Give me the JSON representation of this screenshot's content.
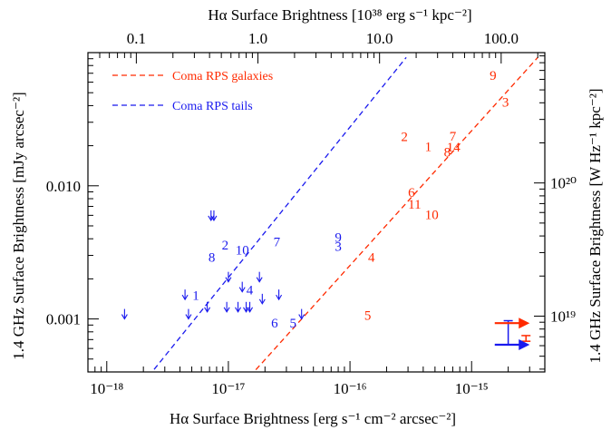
{
  "chart_data": {
    "type": "scatter",
    "xlabel": "Hα Surface Brightness [erg s⁻¹ cm⁻² arcsec⁻²]",
    "ylabel": "1.4 GHz Surface Brightness [mJy arcsec⁻²]",
    "top_xlabel": "Hα Surface Brightness [10³⁸ erg s⁻¹ kpc⁻²]",
    "right_ylabel": "1.4 GHz Surface Brightness [W Hz⁻¹ kpc⁻²]",
    "x_scale": "log",
    "y_scale": "log",
    "xlim": [
      7e-19,
      4e-15
    ],
    "ylim": [
      0.0004,
      0.1
    ],
    "x_ticks": [
      1e-18,
      1e-17,
      1e-16,
      1e-15
    ],
    "x_tick_labels": [
      "10⁻¹⁸",
      "10⁻¹⁷",
      "10⁻¹⁶",
      "10⁻¹⁵"
    ],
    "y_ticks": [
      0.001,
      0.01
    ],
    "y_tick_labels": [
      "0.001",
      "0.010"
    ],
    "top_ticks": [
      0.1,
      1.0,
      10.0,
      100.0
    ],
    "top_tick_labels": [
      "0.1",
      "1.0",
      "10.0",
      "100.0"
    ],
    "top_axis_factor": 1.75e-17,
    "right_ticks": [
      1e+19,
      1e+20
    ],
    "right_tick_labels": [
      "10¹⁹",
      "10²⁰"
    ],
    "right_axis_factor": 1.05e-22,
    "colors": {
      "galaxies": "#ff2a00",
      "tails": "#1a1aee",
      "axes": "#000000"
    },
    "legend": [
      {
        "label": "Coma RPS galaxies",
        "color": "#ff2a00"
      },
      {
        "label": "Coma RPS tails",
        "color": "#1a1aee"
      }
    ],
    "legend_position": "top-left",
    "fit_lines": [
      {
        "name": "Coma RPS galaxies",
        "color": "#ff2a00",
        "x": [
          1.5e-17,
          3.5e-15
        ],
        "y": [
          0.00037,
          0.092
        ]
      },
      {
        "name": "Coma RPS tails",
        "color": "#1a1aee",
        "x": [
          2.2e-18,
          2.9e-16
        ],
        "y": [
          0.00037,
          0.092
        ]
      }
    ],
    "galaxies": [
      {
        "label": "1",
        "x": 4.4e-16,
        "y": 0.0197
      },
      {
        "label": "2",
        "x": 2.8e-16,
        "y": 0.0235
      },
      {
        "label": "3",
        "x": 1.9e-15,
        "y": 0.0426
      },
      {
        "label": "4",
        "x": 1.5e-16,
        "y": 0.0029
      },
      {
        "label": "5",
        "x": 1.4e-16,
        "y": 0.00107
      },
      {
        "label": "6",
        "x": 3.2e-16,
        "y": 0.0089
      },
      {
        "label": "7",
        "x": 7e-16,
        "y": 0.0236
      },
      {
        "label": "8",
        "x": 6.3e-16,
        "y": 0.0179
      },
      {
        "label": "9",
        "x": 1.5e-15,
        "y": 0.0675
      },
      {
        "label": "10",
        "x": 4.7e-16,
        "y": 0.0061
      },
      {
        "label": "11",
        "x": 3.4e-16,
        "y": 0.0073
      },
      {
        "label": "14",
        "x": 7.1e-16,
        "y": 0.0196
      }
    ],
    "tails": [
      {
        "label": "1",
        "x": 5.4e-18,
        "y": 0.0015
      },
      {
        "label": "2",
        "x": 9.4e-18,
        "y": 0.0036
      },
      {
        "label": "3",
        "x": 8e-17,
        "y": 0.0035
      },
      {
        "label": "4",
        "x": 1.5e-17,
        "y": 0.00165
      },
      {
        "label": "5",
        "x": 3.4e-17,
        "y": 0.00093
      },
      {
        "label": "6",
        "x": 2.4e-17,
        "y": 0.00093
      },
      {
        "label": "7",
        "x": 2.5e-17,
        "y": 0.0038
      },
      {
        "label": "8",
        "x": 7.3e-18,
        "y": 0.0029
      },
      {
        "label": "9",
        "x": 8e-17,
        "y": 0.0041
      },
      {
        "label": "10",
        "x": 1.3e-17,
        "y": 0.0033
      }
    ],
    "tail_upper_limits_x": [
      1.4e-18,
      4.4e-18,
      4.7e-18,
      6.7e-18,
      7.2e-18,
      7.6e-18,
      9.7e-18,
      1e-17,
      1.2e-17,
      1.3e-17,
      1.4e-17,
      1.5e-17,
      1.8e-17,
      1.9e-17,
      2.6e-17,
      4e-17
    ],
    "tail_upper_limits_y": [
      0.001,
      0.0014,
      0.001,
      0.00113,
      0.0055,
      0.0055,
      0.00113,
      0.0019,
      0.00113,
      0.0016,
      0.00113,
      0.00113,
      0.0019,
      0.0013,
      0.0014,
      0.001
    ],
    "error_bars": [
      {
        "color": "#1a1aee",
        "x": 2e-15,
        "y_low": 0.00064,
        "y_high": 0.00097
      },
      {
        "color": "#ff2a00",
        "x": 2.8e-15,
        "y_low": 0.00068,
        "y_high": 0.00075
      }
    ],
    "offset_arrows": [
      {
        "color": "#ff2a00",
        "x_from": 1.55e-15,
        "x_to": 3e-15,
        "y": 0.00093
      },
      {
        "color": "#1a1aee",
        "x_from": 1.55e-15,
        "x_to": 3e-15,
        "y": 0.00064
      }
    ]
  }
}
